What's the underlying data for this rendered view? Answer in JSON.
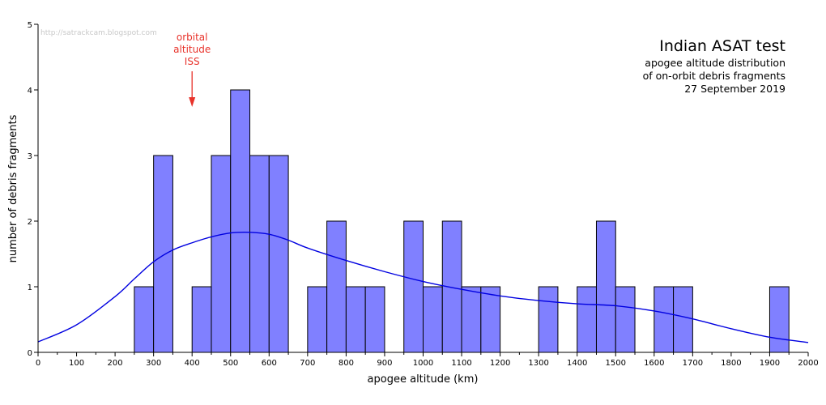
{
  "watermark": "http://satrackcam.blogspot.com",
  "title": {
    "main": "Indian ASAT test",
    "lines": [
      "apogee altitude distribution",
      "of on-orbit debris fragments",
      "27 September 2019"
    ]
  },
  "annotation": {
    "lines": [
      "orbital",
      "altitude",
      "ISS"
    ],
    "x": 400,
    "color": "#e8322a"
  },
  "chart_data": {
    "type": "bar",
    "xlabel": "apogee altitude (km)",
    "ylabel": "number of debris fragments",
    "xlim": [
      0,
      2000
    ],
    "ylim": [
      0,
      5
    ],
    "xticks": [
      0,
      100,
      200,
      300,
      400,
      500,
      600,
      700,
      800,
      900,
      1000,
      1100,
      1200,
      1300,
      1400,
      1500,
      1600,
      1700,
      1800,
      1900,
      2000
    ],
    "yticks": [
      0,
      1,
      2,
      3,
      4,
      5
    ],
    "bin_width": 50,
    "bins": [
      {
        "start": 250,
        "count": 1
      },
      {
        "start": 300,
        "count": 3
      },
      {
        "start": 400,
        "count": 1
      },
      {
        "start": 450,
        "count": 3
      },
      {
        "start": 500,
        "count": 4
      },
      {
        "start": 550,
        "count": 3
      },
      {
        "start": 600,
        "count": 3
      },
      {
        "start": 700,
        "count": 1
      },
      {
        "start": 750,
        "count": 2
      },
      {
        "start": 800,
        "count": 1
      },
      {
        "start": 850,
        "count": 1
      },
      {
        "start": 950,
        "count": 2
      },
      {
        "start": 1000,
        "count": 1
      },
      {
        "start": 1050,
        "count": 2
      },
      {
        "start": 1100,
        "count": 1
      },
      {
        "start": 1150,
        "count": 1
      },
      {
        "start": 1300,
        "count": 1
      },
      {
        "start": 1400,
        "count": 1
      },
      {
        "start": 1450,
        "count": 2
      },
      {
        "start": 1500,
        "count": 1
      },
      {
        "start": 1600,
        "count": 1
      },
      {
        "start": 1650,
        "count": 1
      },
      {
        "start": 1900,
        "count": 1
      }
    ],
    "curve": {
      "x": [
        0,
        100,
        200,
        250,
        300,
        350,
        400,
        450,
        500,
        550,
        600,
        650,
        700,
        800,
        900,
        1000,
        1100,
        1200,
        1300,
        1400,
        1500,
        1600,
        1700,
        1800,
        1900,
        2000
      ],
      "y": [
        0.16,
        0.42,
        0.85,
        1.12,
        1.38,
        1.56,
        1.67,
        1.76,
        1.82,
        1.83,
        1.8,
        1.71,
        1.59,
        1.4,
        1.23,
        1.08,
        0.96,
        0.86,
        0.79,
        0.74,
        0.71,
        0.63,
        0.51,
        0.36,
        0.23,
        0.15
      ]
    },
    "bar_color": "#8080ff",
    "curve_color": "#0000e0"
  }
}
